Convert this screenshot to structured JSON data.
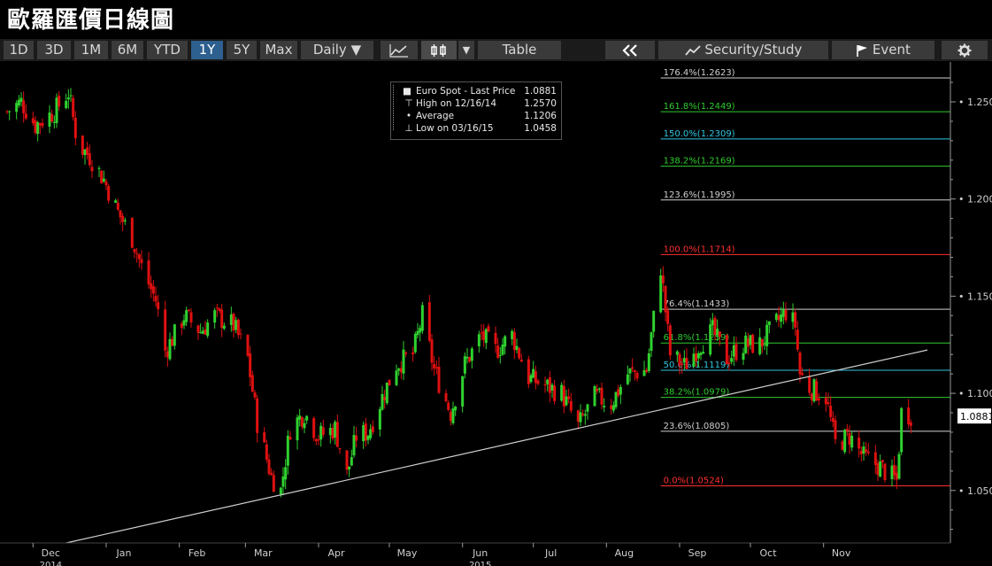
{
  "title": "歐羅匯價日線圖",
  "toolbar": {
    "ranges": [
      "1D",
      "3D",
      "1M",
      "6M",
      "YTD",
      "1Y",
      "5Y",
      "Max"
    ],
    "active_range": "1Y",
    "interval": "Daily ▼",
    "line_icon": "line-chart-icon",
    "candle_icon": "candlestick-icon",
    "candle_dropdown": "▼",
    "table_label": "Table",
    "collapse_icon": "double-chevron-left-icon",
    "security_label": "Security/Study",
    "event_label": "Event",
    "settings_icon": "gear-icon"
  },
  "legend": {
    "name": "Euro Spot - Last Price",
    "last": "1.0881",
    "high_label": "High on 12/16/14",
    "high": "1.2570",
    "avg_label": "Average",
    "avg": "1.1206",
    "low_label": "Low on 03/16/15",
    "low": "1.0458"
  },
  "colors": {
    "up": "#2fd12f",
    "down": "#e01010",
    "trend": "#cfcfcf",
    "axis": "#9a9a9a"
  },
  "chart_data": {
    "type": "candlestick",
    "ylim": [
      1.023,
      1.2705
    ],
    "y_ticks": [
      "1.0500",
      "1.1000",
      "1.1500",
      "1.2000",
      "1.2500"
    ],
    "last_price_label": "1.0881",
    "x_labels": [
      {
        "label": "Dec",
        "date": "2014-12-01",
        "sub": "2014"
      },
      {
        "label": "Jan",
        "date": "2015-01-01"
      },
      {
        "label": "Feb",
        "date": "2015-02-01"
      },
      {
        "label": "Mar",
        "date": "2015-03-01"
      },
      {
        "label": "Apr",
        "date": "2015-04-01"
      },
      {
        "label": "May",
        "date": "2015-05-01"
      },
      {
        "label": "Jun",
        "date": "2015-06-01",
        "sub": "2015"
      },
      {
        "label": "Jul",
        "date": "2015-07-01"
      },
      {
        "label": "Aug",
        "date": "2015-08-01"
      },
      {
        "label": "Sep",
        "date": "2015-09-01"
      },
      {
        "label": "Oct",
        "date": "2015-10-01"
      },
      {
        "label": "Nov",
        "date": "2015-11-01"
      }
    ],
    "date_range": [
      "2014-11-20",
      "2015-12-15"
    ],
    "trendline": [
      [
        "2014-12-15",
        1.023
      ],
      [
        "2015-12-15",
        1.1223
      ]
    ],
    "fib_start": "2015-08-24",
    "fib_end": "2015-12-15",
    "fib_levels": [
      {
        "label": "176.4%(1.2623)",
        "value": 1.2623,
        "color": "#cfcfcf"
      },
      {
        "label": "161.8%(1.2449)",
        "value": 1.2449,
        "color": "#2ecc2e"
      },
      {
        "label": "150.0%(1.2309)",
        "value": 1.2309,
        "color": "#2fc6e0"
      },
      {
        "label": "138.2%(1.2169)",
        "value": 1.2169,
        "color": "#2ecc2e"
      },
      {
        "label": "123.6%(1.1995)",
        "value": 1.1995,
        "color": "#cfcfcf"
      },
      {
        "label": "100.0%(1.1714)",
        "value": 1.1714,
        "color": "#ff3030"
      },
      {
        "label": "76.4%(1.1433)",
        "value": 1.1433,
        "color": "#cfcfcf"
      },
      {
        "label": "61.8%(1.1259)",
        "value": 1.1259,
        "color": "#2ecc2e"
      },
      {
        "label": "50.0%(1.1119)",
        "value": 1.1119,
        "color": "#2fc6e0"
      },
      {
        "label": "38.2%(1.0979)",
        "value": 1.0979,
        "color": "#2ecc2e"
      },
      {
        "label": "23.6%(1.0805)",
        "value": 1.0805,
        "color": "#cfcfcf"
      },
      {
        "label": "0.0%(1.0524)",
        "value": 1.0524,
        "color": "#ff3030"
      }
    ],
    "close_path": [
      [
        "2014-11-20",
        1.245
      ],
      [
        "2014-11-26",
        1.25
      ],
      [
        "2014-12-02",
        1.238
      ],
      [
        "2014-12-10",
        1.245
      ],
      [
        "2014-12-16",
        1.255
      ],
      [
        "2014-12-20",
        1.228
      ],
      [
        "2014-12-25",
        1.222
      ],
      [
        "2014-12-31",
        1.21
      ],
      [
        "2015-01-06",
        1.193
      ],
      [
        "2015-01-12",
        1.18
      ],
      [
        "2015-01-16",
        1.165
      ],
      [
        "2015-01-22",
        1.148
      ],
      [
        "2015-01-26",
        1.122
      ],
      [
        "2015-01-30",
        1.13
      ],
      [
        "2015-02-03",
        1.14
      ],
      [
        "2015-02-10",
        1.132
      ],
      [
        "2015-02-16",
        1.14
      ],
      [
        "2015-02-24",
        1.135
      ],
      [
        "2015-03-02",
        1.118
      ],
      [
        "2015-03-06",
        1.085
      ],
      [
        "2015-03-12",
        1.057
      ],
      [
        "2015-03-16",
        1.05
      ],
      [
        "2015-03-20",
        1.082
      ],
      [
        "2015-03-26",
        1.09
      ],
      [
        "2015-04-01",
        1.078
      ],
      [
        "2015-04-08",
        1.082
      ],
      [
        "2015-04-13",
        1.058
      ],
      [
        "2015-04-17",
        1.078
      ],
      [
        "2015-04-22",
        1.08
      ],
      [
        "2015-04-28",
        1.098
      ],
      [
        "2015-05-04",
        1.115
      ],
      [
        "2015-05-11",
        1.12
      ],
      [
        "2015-05-15",
        1.14
      ],
      [
        "2015-05-20",
        1.112
      ],
      [
        "2015-05-27",
        1.09
      ],
      [
        "2015-06-02",
        1.115
      ],
      [
        "2015-06-09",
        1.13
      ],
      [
        "2015-06-15",
        1.122
      ],
      [
        "2015-06-22",
        1.13
      ],
      [
        "2015-06-29",
        1.108
      ],
      [
        "2015-07-06",
        1.104
      ],
      [
        "2015-07-13",
        1.1
      ],
      [
        "2015-07-20",
        1.083
      ],
      [
        "2015-07-27",
        1.098
      ],
      [
        "2015-08-03",
        1.095
      ],
      [
        "2015-08-10",
        1.11
      ],
      [
        "2015-08-18",
        1.112
      ],
      [
        "2015-08-24",
        1.165
      ],
      [
        "2015-08-28",
        1.12
      ],
      [
        "2015-09-03",
        1.114
      ],
      [
        "2015-09-10",
        1.126
      ],
      [
        "2015-09-15",
        1.132
      ],
      [
        "2015-09-21",
        1.118
      ],
      [
        "2015-09-28",
        1.125
      ],
      [
        "2015-10-05",
        1.125
      ],
      [
        "2015-10-12",
        1.136
      ],
      [
        "2015-10-16",
        1.142
      ],
      [
        "2015-10-20",
        1.135
      ],
      [
        "2015-10-22",
        1.11
      ],
      [
        "2015-10-26",
        1.103
      ],
      [
        "2015-11-02",
        1.098
      ],
      [
        "2015-11-06",
        1.074
      ],
      [
        "2015-11-12",
        1.078
      ],
      [
        "2015-11-18",
        1.067
      ],
      [
        "2015-11-24",
        1.063
      ],
      [
        "2015-11-30",
        1.057
      ],
      [
        "2015-12-02",
        1.055
      ],
      [
        "2015-12-04",
        1.09
      ],
      [
        "2015-12-08",
        1.089
      ]
    ]
  }
}
